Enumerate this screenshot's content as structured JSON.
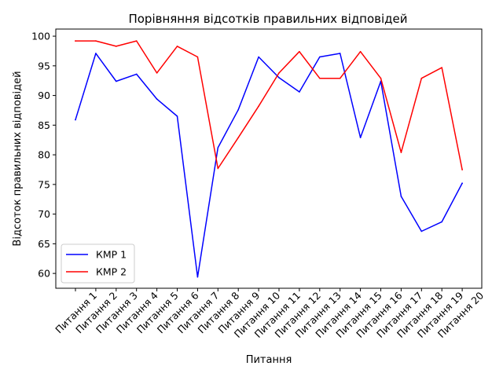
{
  "chart_data": {
    "type": "line",
    "title": "Порівняння відсотків правильних відповідей",
    "xlabel": "Питання",
    "ylabel": "Відсоток правильних відповідей",
    "categories": [
      "Питання 1",
      "Питання 2",
      "Питання 3",
      "Питання 4",
      "Питання 5",
      "Питання 6",
      "Питання 7",
      "Питання 8",
      "Питання 9",
      "Питання 10",
      "Питання 11",
      "Питання 12",
      "Питання 13",
      "Питання 14",
      "Питання 15",
      "Питання 16",
      "Питання 17",
      "Питання 18",
      "Питання 19",
      "Питання 20"
    ],
    "ylim": [
      57.5,
      101.2
    ],
    "yticks": [
      60,
      65,
      70,
      75,
      80,
      85,
      90,
      95,
      100
    ],
    "grid": false,
    "legend_position": "lower-left",
    "series": [
      {
        "name": "КМР 1",
        "color": "#0000ff",
        "values": [
          85.9,
          97.1,
          92.4,
          93.6,
          89.4,
          86.5,
          59.4,
          81.2,
          87.6,
          96.5,
          93.0,
          90.6,
          96.5,
          97.1,
          82.9,
          92.4,
          73.0,
          67.1,
          68.7,
          75.2
        ]
      },
      {
        "name": "КМР 2",
        "color": "#ff0000",
        "values": [
          99.2,
          99.2,
          98.3,
          99.2,
          93.8,
          98.3,
          96.5,
          77.7,
          82.9,
          88.2,
          93.8,
          97.4,
          92.9,
          92.9,
          97.4,
          92.9,
          80.4,
          92.9,
          94.7,
          77.5
        ]
      }
    ]
  }
}
